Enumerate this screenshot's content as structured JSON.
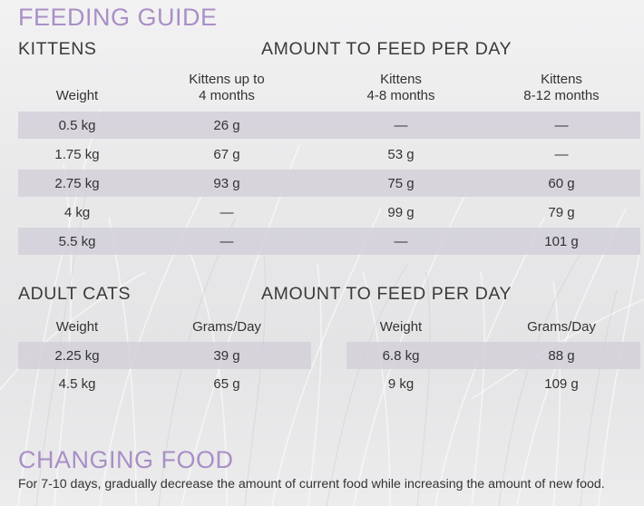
{
  "colors": {
    "title": "#a98fc6",
    "band": "#d2ced8",
    "text": "#333333"
  },
  "title": "FEEDING GUIDE",
  "kittens": {
    "section_label": "KITTENS",
    "amount_label": "AMOUNT TO FEED PER DAY",
    "headers": {
      "weight": "Weight",
      "col1": [
        "Kittens up to",
        "4 months"
      ],
      "col2": [
        "Kittens",
        "4-8 months"
      ],
      "col3": [
        "Kittens",
        "8-12 months"
      ]
    },
    "rows": [
      [
        "0.5 kg",
        "26 g",
        "—",
        "—"
      ],
      [
        "1.75 kg",
        "67 g",
        "53 g",
        "—"
      ],
      [
        "2.75 kg",
        "93 g",
        "75 g",
        "60 g"
      ],
      [
        "4 kg",
        "—",
        "99 g",
        "79 g"
      ],
      [
        "5.5 kg",
        "—",
        "—",
        "101 g"
      ]
    ]
  },
  "adult": {
    "section_label": "ADULT CATS",
    "amount_label": "AMOUNT TO FEED PER DAY",
    "headers": [
      "Weight",
      "Grams/Day",
      "Weight",
      "Grams/Day"
    ],
    "rows": [
      [
        "2.25 kg",
        "39 g",
        "6.8 kg",
        "88 g"
      ],
      [
        "4.5 kg",
        "65 g",
        "9 kg",
        "109 g"
      ]
    ]
  },
  "changing": {
    "title": "CHANGING FOOD",
    "text": "For 7-10 days, gradually decrease the amount of current food while increasing the amount of new food."
  }
}
